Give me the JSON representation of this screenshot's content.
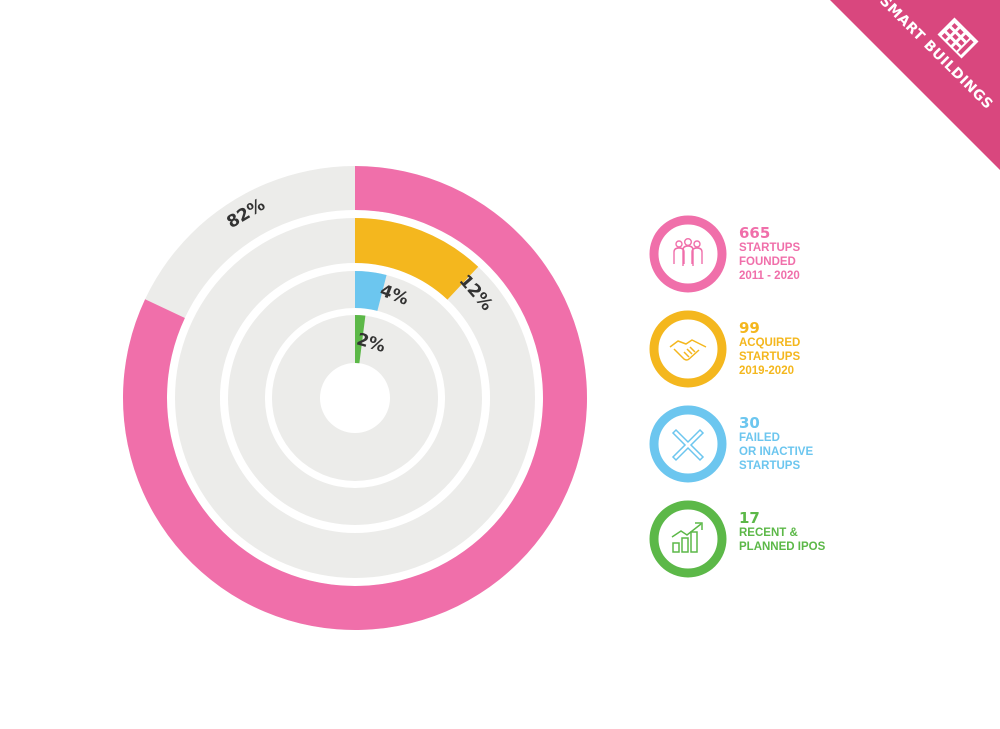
{
  "banner": {
    "label": "SMART BUILDINGS",
    "color": "#d9477e",
    "icon": "building-icon"
  },
  "chart_data": {
    "type": "radial-bar",
    "track_color": "#ececea",
    "series": [
      {
        "key": "founded",
        "label": "82%",
        "value": 82,
        "color": "#f06faa"
      },
      {
        "key": "acquired",
        "label": "12%",
        "value": 12,
        "color": "#f4b71e"
      },
      {
        "key": "failed",
        "label": "4%",
        "value": 4,
        "color": "#6cc6ef"
      },
      {
        "key": "ipos",
        "label": "2%",
        "value": 2,
        "color": "#5cb848"
      }
    ]
  },
  "legend": [
    {
      "value": "665",
      "label": "STARTUPS\nFOUNDED\n2011 - 2020",
      "color": "#f06faa",
      "icon": "people-group-icon"
    },
    {
      "value": "99",
      "label": "ACQUIRED\nSTARTUPS\n2019-2020",
      "color": "#f4b71e",
      "icon": "handshake-icon"
    },
    {
      "value": "30",
      "label": "FAILED\nOR INACTIVE\nSTARTUPS",
      "color": "#6cc6ef",
      "icon": "x-mark-icon"
    },
    {
      "value": "17",
      "label": "RECENT &\nPLANNED IPOs",
      "color": "#5cb848",
      "icon": "growth-chart-icon"
    }
  ]
}
